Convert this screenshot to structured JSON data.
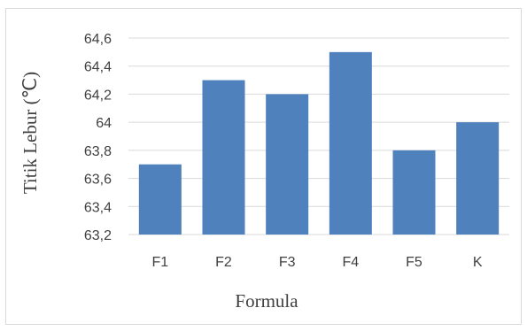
{
  "chart_data": {
    "type": "bar",
    "xlabel": "Formula",
    "ylabel": "Titik Lebur (℃)",
    "categories": [
      "F1",
      "F2",
      "F3",
      "F4",
      "F5",
      "K"
    ],
    "values": [
      63.7,
      64.3,
      64.2,
      64.5,
      63.8,
      64.0
    ],
    "ylim": [
      63.2,
      64.6
    ],
    "yticks": [
      63.2,
      63.4,
      63.6,
      63.8,
      64.0,
      64.2,
      64.4,
      64.6
    ],
    "ytick_labels": [
      "63,2",
      "63,4",
      "63,6",
      "63,8",
      "64",
      "64,2",
      "64,4",
      "64,6"
    ],
    "grid": true,
    "bar_color": "#4F81BD",
    "grid_color": "#d9d9d9"
  }
}
